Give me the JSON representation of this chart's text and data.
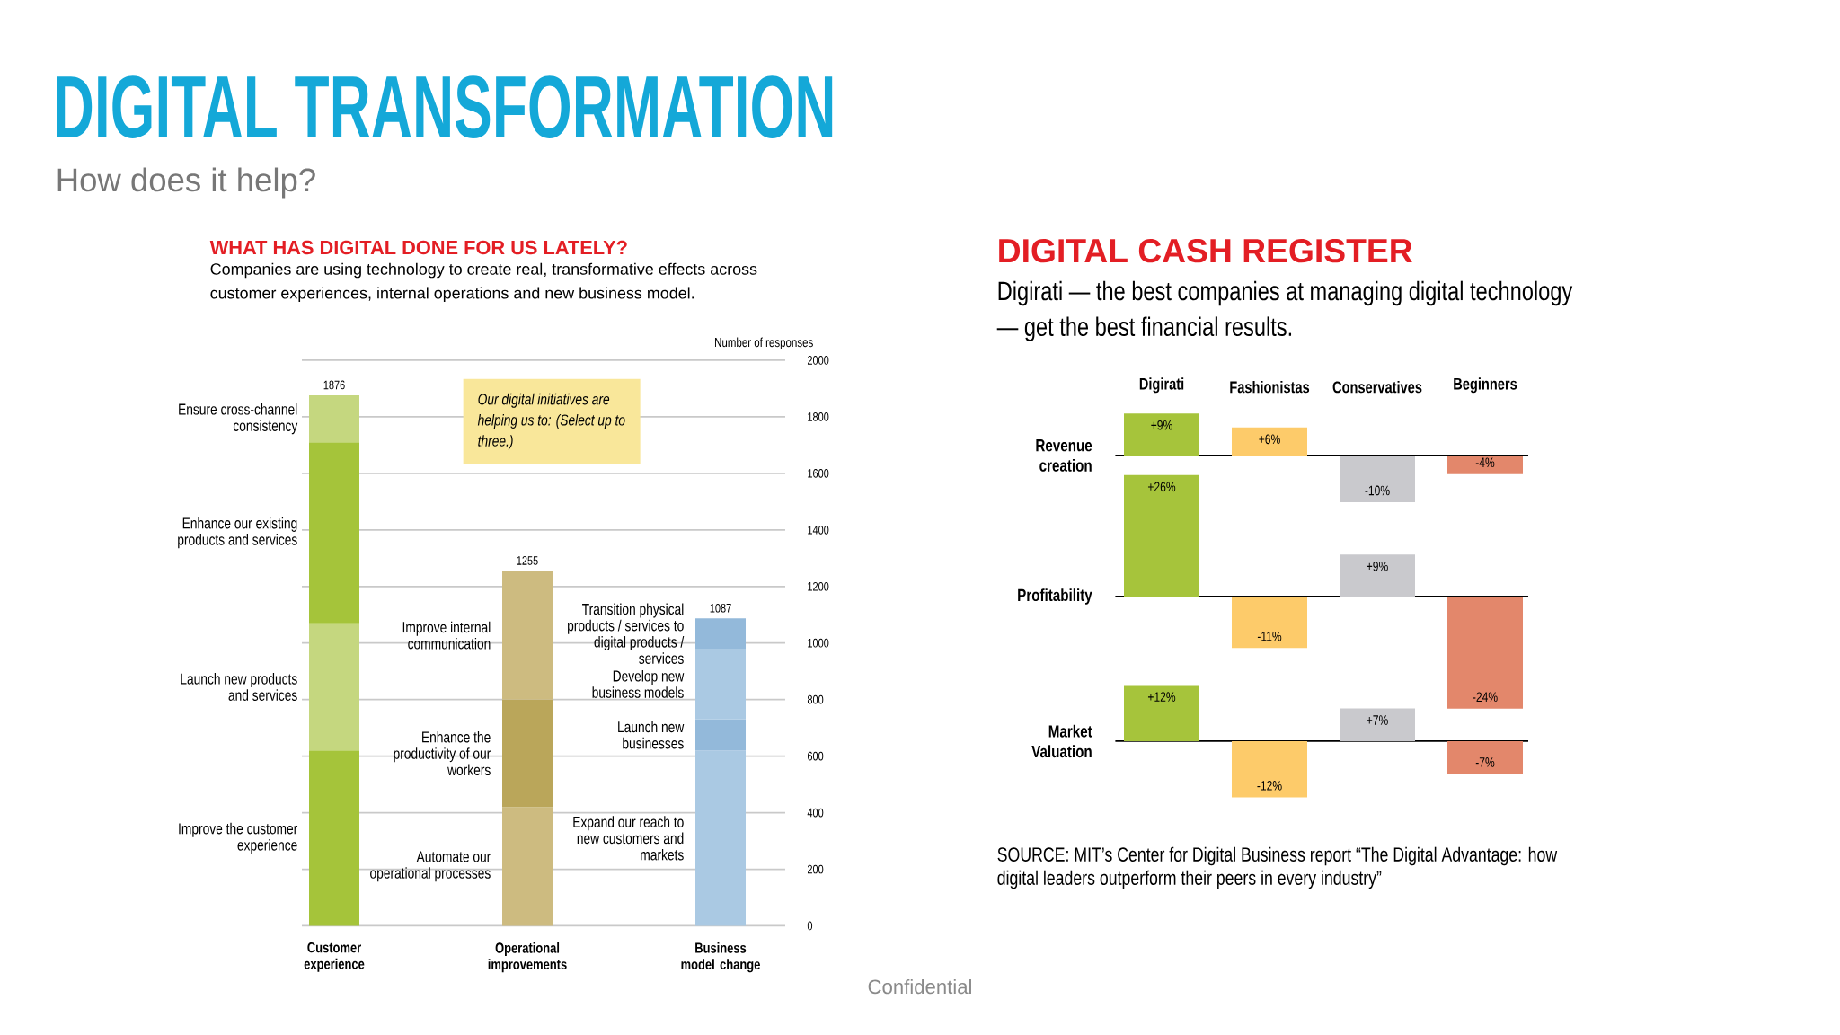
{
  "chart_data": [
    {
      "type": "other",
      "title": "DIGITAL TRANSFORMATION",
      "subtitle": "How does it help?",
      "annotations": [
        "Confidential"
      ]
    },
    {
      "type": "bar",
      "stacked": true,
      "title": "WHAT HAS DIGITAL DONE FOR US LATELY?",
      "subtitle": "Companies are using technology to create real, transformative effects across customer experiences, internal operations and new business model.",
      "categories": [
        "Customer experience",
        "Operational improvements",
        "Business model change"
      ],
      "series": [
        {
          "values": [
            620,
            420,
            620
          ],
          "colors": [
            "#a5c43a",
            "#cdbb80",
            "#aac9e3"
          ]
        },
        {
          "values": [
            450,
            380,
            110
          ],
          "colors": [
            "#c5d77f",
            "#baa65a",
            "#93b9da"
          ]
        },
        {
          "values": [
            640,
            455,
            250
          ],
          "colors": [
            "#a5c43a",
            "#cdbb80",
            "#aac9e3"
          ]
        },
        {
          "values": [
            166,
            null,
            107
          ],
          "colors": [
            "#c5d77f",
            null,
            "#93b9da"
          ]
        }
      ],
      "totals": [
        "1876",
        "1255",
        "1087"
      ],
      "ylabel": "Number of responses",
      "ylim": [
        0,
        2000
      ],
      "yticks": [
        0,
        200,
        400,
        600,
        800,
        1000,
        1200,
        1400,
        1600,
        1800,
        2000
      ],
      "grid": "y",
      "annotations": [
        "Improve the customer experience",
        "Launch new products and services",
        "Enhance our existing products and services",
        "Ensure cross-channel consistency",
        "Automate our operational processes",
        "Enhance the productivity of our workers",
        "Improve internal communication",
        "Expand our reach to new customers and markets",
        "Launch new businesses",
        "Develop new business models",
        "Transition physical products / services to digital products / services",
        "Our digital initiatives are helping us to: (Select up to three.)"
      ]
    },
    {
      "type": "bar",
      "title": "DIGITAL CASH REGISTER",
      "subtitle": "Digirati — the best companies at managing digital technology — get the best financial results.",
      "ylabel": "Revenue creation",
      "tick_labels": "x",
      "categories": [
        "Digirati",
        "Fashionistas",
        "Conservatives",
        "Beginners"
      ],
      "values": [
        9,
        6,
        -10,
        -4
      ],
      "value_labels": [
        "+9%",
        "+6%",
        "-10%",
        "-4%"
      ],
      "colors": [
        "#a6c43b",
        "#fdcb6a",
        "#c9c9cd",
        "#e3876b"
      ]
    },
    {
      "type": "bar",
      "ylabel": "Profitability",
      "tick_labels": false,
      "values": [
        26,
        -11,
        9,
        -24
      ],
      "value_labels": [
        "+26%",
        "-11%",
        "+9%",
        "-24%"
      ],
      "colors": [
        "#a6c43b",
        "#fdcb6a",
        "#c9c9cd",
        "#e3876b"
      ]
    },
    {
      "type": "bar",
      "ylabel": "Market Valuation",
      "tick_labels": false,
      "values": [
        12,
        -12,
        7,
        -7
      ],
      "value_labels": [
        "+12%",
        "-12%",
        "+7%",
        "-7%"
      ],
      "colors": [
        "#a6c43b",
        "#fdcb6a",
        "#c9c9cd",
        "#e3876b"
      ],
      "annotations": [
        "SOURCE: MIT’s Center for Digital Business report “The Digital Advantage: how digital leaders outperform their peers in every industry”"
      ]
    }
  ]
}
